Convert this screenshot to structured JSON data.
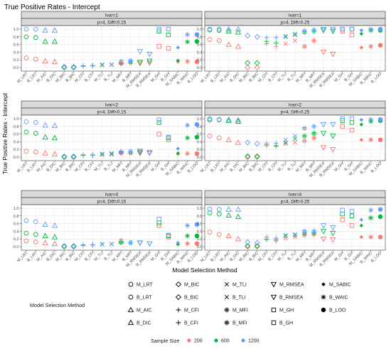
{
  "chart_data": {
    "type": "scatter",
    "title": "True Positive Rates - Intercept",
    "xlabel": "Model Selection Method",
    "ylabel": "True Positive Rates - Intercept",
    "ylim": [
      0,
      1
    ],
    "yticks": [
      "0.0",
      "0.2",
      "0.4",
      "0.6",
      "0.8",
      "1.0"
    ],
    "methods": [
      "M_LRT",
      "B_LRT",
      "M_AIC",
      "B_DIC",
      "M_BIC",
      "B_BIC",
      "M_CFI",
      "B_CFI",
      "M_TLI",
      "B_TLI",
      "M_MFI",
      "B_MFI",
      "M_RMSEA",
      "B_RMSEA",
      "M_GH",
      "B_GH",
      "M_SABIC",
      "B_WAIC",
      "B_LOO"
    ],
    "sample_sizes": [
      "200",
      "600",
      "1200"
    ],
    "colors": {
      "200": "#F8766D",
      "600": "#00BA38",
      "1200": "#619CFF"
    },
    "panels": [
      {
        "row": 0,
        "col": 0,
        "strip_top": "Ivar=1",
        "strip_sub": "p=4, Diff=0.15",
        "values": {
          "200": [
            0.25,
            0.22,
            0.17,
            0.15,
            0,
            0,
            0.03,
            0.04,
            0.06,
            0.07,
            0.1,
            0.12,
            0.11,
            0.12,
            0.55,
            0.5,
            0.15,
            0.16,
            0.15
          ],
          "600": [
            0.8,
            0.78,
            0.68,
            0.68,
            0,
            0,
            0.04,
            0.05,
            0.07,
            0.08,
            0.12,
            0.15,
            0.14,
            0.17,
            0.95,
            0.85,
            0.18,
            0.67,
            0.68
          ],
          "1200": [
            1.0,
            1.0,
            0.97,
            0.97,
            0.02,
            0.02,
            0.05,
            0.05,
            0.08,
            0.08,
            0.16,
            0.18,
            0.42,
            0.35,
            1.0,
            1.0,
            0.52,
            0.86,
            0.86
          ]
        }
      },
      {
        "row": 0,
        "col": 1,
        "strip_top": "Ivar=1",
        "strip_sub": "p=4, Diff=0.25",
        "values": {
          "200": [
            0.73,
            0.7,
            0.6,
            0.55,
            0,
            0,
            0.62,
            0.55,
            0.62,
            0.7,
            0.55,
            0.7,
            0.4,
            0.35,
            0.95,
            0.85,
            0.52,
            0.55,
            0.58
          ],
          "600": [
            0.98,
            0.97,
            0.95,
            0.92,
            0.12,
            0.12,
            0.68,
            0.64,
            0.8,
            0.85,
            0.92,
            0.95,
            0.97,
            0.95,
            1.0,
            1.0,
            0.88,
            0.97,
            0.97
          ],
          "1200": [
            1.0,
            1.0,
            1.0,
            1.0,
            0.83,
            0.8,
            0.78,
            0.78,
            0.82,
            0.88,
            0.95,
            0.98,
            1.0,
            1.0,
            1.0,
            1.0,
            0.97,
            1.0,
            1.0
          ]
        }
      },
      {
        "row": 1,
        "col": 0,
        "strip_top": "Ivar=2",
        "strip_sub": "p=4, Diff=0.15",
        "values": {
          "200": [
            0.15,
            0.13,
            0.1,
            0.08,
            0,
            0,
            0.04,
            0.05,
            0.06,
            0.07,
            0.1,
            0.11,
            0.1,
            0.1,
            0.6,
            0.45,
            0.08,
            0.09,
            0.09
          ],
          "600": [
            0.65,
            0.62,
            0.52,
            0.5,
            0,
            0,
            0.05,
            0.05,
            0.07,
            0.08,
            0.12,
            0.12,
            0.13,
            0.12,
            0.9,
            0.5,
            0.1,
            0.5,
            0.52
          ],
          "1200": [
            0.92,
            0.9,
            0.83,
            0.82,
            0.02,
            0.02,
            0.06,
            0.06,
            0.09,
            0.1,
            0.14,
            0.15,
            0.16,
            0.12,
            0.97,
            0.52,
            0.22,
            0.83,
            0.85
          ]
        }
      },
      {
        "row": 1,
        "col": 1,
        "strip_top": "Ivar=2",
        "strip_sub": "p=4, Diff=0.25",
        "values": {
          "200": [
            0.55,
            0.5,
            0.45,
            0.38,
            0,
            0,
            0.3,
            0.28,
            0.35,
            0.38,
            0.42,
            0.5,
            0.25,
            0.2,
            0.8,
            0.7,
            0.45,
            0.45,
            0.45
          ],
          "600": [
            0.97,
            0.97,
            0.95,
            0.93,
            0.02,
            0.02,
            0.32,
            0.3,
            0.38,
            0.48,
            0.55,
            0.62,
            0.62,
            0.55,
            0.95,
            0.9,
            0.85,
            0.93,
            0.95
          ],
          "1200": [
            1.0,
            0.98,
            0.98,
            0.97,
            0.38,
            0.35,
            0.36,
            0.36,
            0.45,
            0.55,
            0.75,
            0.8,
            0.85,
            0.85,
            1.0,
            1.0,
            0.97,
            0.98,
            0.98
          ]
        }
      },
      {
        "row": 2,
        "col": 0,
        "strip_top": "Ivar=4",
        "strip_sub": "p=4, Diff=0.15",
        "values": {
          "200": [
            0.15,
            0.12,
            0.1,
            0.08,
            0,
            0,
            0.03,
            0.04,
            0.06,
            0.07,
            0.16,
            0.1,
            0.1,
            0.08,
            0.55,
            0.25,
            0.06,
            0.08,
            0.08
          ],
          "600": [
            0.35,
            0.32,
            0.28,
            0.25,
            0,
            0,
            0.04,
            0.05,
            0.06,
            0.07,
            0.1,
            0.1,
            0.1,
            0.08,
            0.62,
            0.28,
            0.06,
            0.28,
            0.28
          ],
          "1200": [
            0.68,
            0.65,
            0.58,
            0.55,
            0.02,
            0.02,
            0.05,
            0.05,
            0.07,
            0.07,
            0.12,
            0.1,
            0.1,
            0.08,
            0.72,
            0.3,
            0.1,
            0.55,
            0.58
          ]
        }
      },
      {
        "row": 2,
        "col": 1,
        "strip_top": "Ivar=4",
        "strip_sub": "p=4, Diff=0.25",
        "values": {
          "200": [
            0.38,
            0.32,
            0.28,
            0.2,
            0,
            0,
            0.18,
            0.15,
            0.22,
            0.25,
            0.3,
            0.32,
            0.2,
            0.18,
            0.7,
            0.55,
            0.25,
            0.25,
            0.25
          ],
          "600": [
            0.88,
            0.85,
            0.82,
            0.78,
            0.02,
            0.02,
            0.2,
            0.18,
            0.28,
            0.3,
            0.35,
            0.35,
            0.4,
            0.35,
            0.85,
            0.8,
            0.55,
            0.75,
            0.78
          ],
          "1200": [
            0.98,
            0.97,
            0.97,
            0.97,
            0.12,
            0.1,
            0.25,
            0.22,
            0.3,
            0.32,
            0.4,
            0.4,
            0.55,
            0.5,
            0.95,
            0.92,
            0.7,
            0.95,
            0.97
          ]
        }
      }
    ],
    "legend_method": {
      "title": "Model Selection Method",
      "columns": [
        [
          "M_LRT",
          "B_LRT",
          "M_AIC",
          "B_DIC"
        ],
        [
          "M_BIC",
          "B_BIC",
          "M_CFI",
          "B_CFI"
        ],
        [
          "M_TLI",
          "B_TLI",
          "M_MFI",
          "B_MFI"
        ],
        [
          "M_RMSEA",
          "B_RMSEA",
          "M_GH",
          "B_GH"
        ],
        [
          "M_SABIC",
          "B_WAIC",
          "B_LOO"
        ]
      ]
    },
    "legend_size": {
      "title": "Sample Size",
      "items": [
        "200",
        "600",
        "1200"
      ]
    },
    "grid": true,
    "legend_position": "bottom"
  }
}
